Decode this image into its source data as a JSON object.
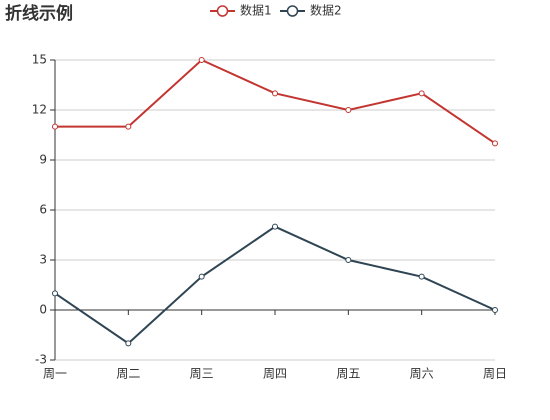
{
  "chart_data": {
    "type": "line",
    "title": "折线示例",
    "categories": [
      "周一",
      "周二",
      "周三",
      "周四",
      "周五",
      "周六",
      "周日"
    ],
    "series": [
      {
        "name": "数据1",
        "color": "#c23531",
        "values": [
          11,
          11,
          15,
          13,
          12,
          13,
          10
        ]
      },
      {
        "name": "数据2",
        "color": "#2f4554",
        "values": [
          1,
          -2,
          2,
          5,
          3,
          2,
          0
        ]
      }
    ],
    "ylim": [
      -3,
      15
    ],
    "yticks": [
      -3,
      0,
      3,
      6,
      9,
      12,
      15
    ],
    "grid": true,
    "legend": "top"
  }
}
